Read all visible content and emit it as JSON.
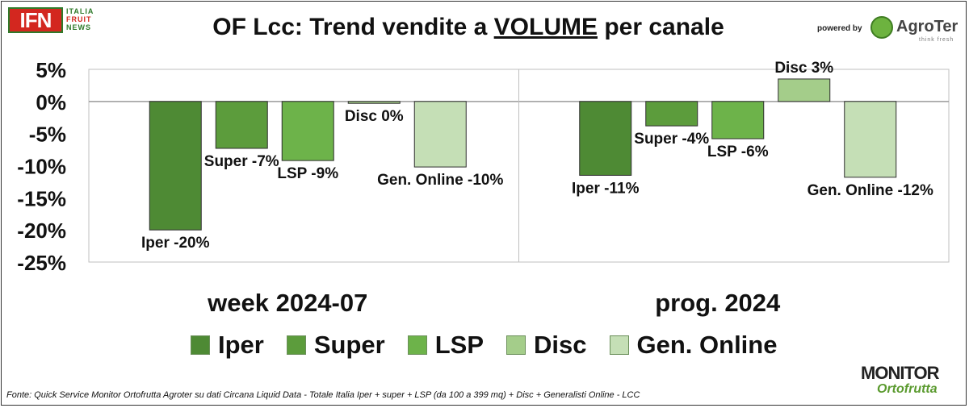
{
  "header": {
    "title_prefix": "OF Lcc: Trend vendite a ",
    "title_underlined": "VOLUME",
    "title_suffix": " per canale",
    "ifn_logo": {
      "mark": "IFN",
      "line1": "ITALIA",
      "line2": "FRUIT",
      "line3": "NEWS"
    },
    "powered_by": "powered by",
    "agroter_logo": {
      "name": "AgroTer",
      "tagline": "think fresh"
    }
  },
  "footer": {
    "source": "Fonte: Quick Service Monitor Ortofrutta Agroter su dati Circana Liquid Data - Totale Italia Iper + super + LSP (da 100 a 399 mq) + Disc + Generalisti Online - LCC",
    "monitor_logo": {
      "top": "MONITOR",
      "bottom": "Ortofrutta"
    }
  },
  "chart_data": {
    "type": "bar",
    "groups": [
      "week 2024-07",
      "prog. 2024"
    ],
    "series": [
      {
        "name": "Iper",
        "color": "#4e8a34",
        "values": [
          -20,
          -11.5
        ],
        "labels": [
          "Iper -20%",
          "Iper -11%"
        ]
      },
      {
        "name": "Super",
        "color": "#5c9c3c",
        "values": [
          -7.3,
          -3.8
        ],
        "labels": [
          "Super -7%",
          "Super -4%"
        ]
      },
      {
        "name": "LSP",
        "color": "#6db34a",
        "values": [
          -9.2,
          -5.8
        ],
        "labels": [
          "LSP -9%",
          "LSP -6%"
        ]
      },
      {
        "name": "Disc",
        "color": "#a4cd8a",
        "values": [
          -0.3,
          3.5
        ],
        "labels": [
          "Disc 0%",
          "Disc 3%"
        ]
      },
      {
        "name": "Gen. Online",
        "color": "#c5dfb6",
        "values": [
          -10.2,
          -11.8
        ],
        "labels": [
          "Gen. Online -10%",
          "Gen. Online -12%"
        ]
      }
    ],
    "yticks": [
      "5%",
      "0%",
      "-5%",
      "-10%",
      "-15%",
      "-20%",
      "-25%"
    ],
    "ylim": [
      -25,
      5
    ],
    "grid": false,
    "legend_position": "bottom"
  }
}
